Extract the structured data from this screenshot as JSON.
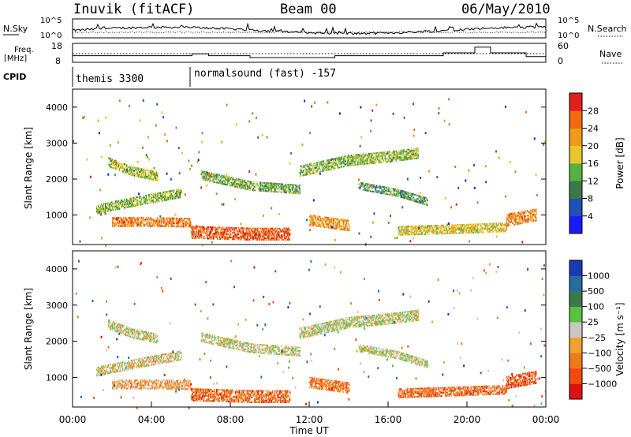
{
  "header": {
    "station": "Inuvik (fitACF)",
    "beam": "Beam 00",
    "date": "06/May/2010"
  },
  "chart_data": [
    {
      "type": "line",
      "panel": "noise",
      "left_label": "N.Sky",
      "right_label": "N.Search",
      "left_ticks": [
        "10^5",
        "10^0"
      ],
      "right_ticks": [
        "10^5",
        "10^0"
      ],
      "scale": "log",
      "ylim": [
        1,
        100000
      ]
    },
    {
      "type": "line",
      "panel": "frequency",
      "left_label_1": "Freq.",
      "left_label_2": "[MHz]",
      "right_label": "Nave",
      "left_ticks": [
        "18",
        "8"
      ],
      "right_ticks": [
        "60",
        "0"
      ],
      "series": [
        {
          "name": "Freq.",
          "x": [
            0,
            6.05,
            6.05,
            6.9,
            6.9,
            9.0,
            9.0,
            13.3,
            13.3,
            18.8,
            18.8,
            20.4,
            20.4,
            21.2,
            21.2,
            23.0,
            23.0,
            24.0
          ],
          "y": [
            11.5,
            11.5,
            12.5,
            12.5,
            11.5,
            11.5,
            10.5,
            10.5,
            11.5,
            11.5,
            13.0,
            13.0,
            16.0,
            16.0,
            13.0,
            13.0,
            11.0,
            11.0
          ]
        }
      ]
    },
    {
      "type": "table",
      "panel": "cpid",
      "label": "CPID",
      "segments": [
        {
          "start": 0,
          "text": "themis 3300"
        },
        {
          "start": 6.05,
          "text": "normalsound (fast) -157"
        }
      ]
    },
    {
      "type": "heatmap",
      "panel": "power",
      "ylabel": "Slant Range [km]",
      "yticks": [
        1000,
        2000,
        3000,
        4000
      ],
      "ylim": [
        180,
        4500
      ],
      "xlim": [
        0,
        24
      ],
      "colorbar_label": "Power [dB]",
      "colorbar_ticks": [
        4,
        8,
        12,
        16,
        20,
        24,
        28
      ],
      "colorbar_colors": [
        "#1a1aff",
        "#2050b8",
        "#3a7a4a",
        "#58b040",
        "#e6c82a",
        "#f09a1a",
        "#f06a10",
        "#e02020"
      ],
      "bands": [
        {
          "x": [
            1.2,
            3.5,
            5.5
          ],
          "y": [
            1150,
            1400,
            1600
          ],
          "w": 250,
          "level": 0.45
        },
        {
          "x": [
            1.8,
            3.0,
            4.3
          ],
          "y": [
            2450,
            2200,
            2050
          ],
          "w": 230,
          "level": 0.5
        },
        {
          "x": [
            2.0,
            4.5,
            6.0
          ],
          "y": [
            800,
            800,
            780
          ],
          "w": 260,
          "level": 0.8
        },
        {
          "x": [
            6.0,
            9.0,
            11.0
          ],
          "y": [
            500,
            450,
            450
          ],
          "w": 320,
          "level": 0.9
        },
        {
          "x": [
            6.5,
            9.0,
            11.5
          ],
          "y": [
            2100,
            1800,
            1700
          ],
          "w": 250,
          "level": 0.4
        },
        {
          "x": [
            11.5,
            14.0,
            16.0,
            17.5
          ],
          "y": [
            2200,
            2500,
            2600,
            2700
          ],
          "w": 280,
          "level": 0.45
        },
        {
          "x": [
            14.5,
            16.5,
            18.0
          ],
          "y": [
            1800,
            1600,
            1350
          ],
          "w": 200,
          "level": 0.35
        },
        {
          "x": [
            12.0,
            14.0
          ],
          "y": [
            850,
            700
          ],
          "w": 300,
          "level": 0.75
        },
        {
          "x": [
            16.5,
            19.5,
            22.0
          ],
          "y": [
            550,
            600,
            650
          ],
          "w": 250,
          "level": 0.6
        },
        {
          "x": [
            22.0,
            23.5
          ],
          "y": [
            850,
            1000
          ],
          "w": 350,
          "level": 0.8
        }
      ]
    },
    {
      "type": "heatmap",
      "panel": "velocity",
      "ylabel": "Slant Range [km]",
      "yticks": [
        1000,
        2000,
        3000,
        4000
      ],
      "ylim": [
        180,
        4500
      ],
      "xlabel": "Time UT",
      "xticks": [
        "00:00",
        "04:00",
        "08:00",
        "12:00",
        "16:00",
        "20:00",
        "00:00"
      ],
      "xlim": [
        0,
        24
      ],
      "colorbar_label": "Velocity [m s⁻¹]",
      "colorbar_ticks": [
        "1000",
        "500",
        "100",
        "25",
        "−25",
        "−100",
        "−500",
        "−1000"
      ],
      "colorbar_colors": [
        "#e01010",
        "#f04a10",
        "#f07a18",
        "#f0a030",
        "#c8c8c8",
        "#5ac040",
        "#3a7a4a",
        "#2a6aa0",
        "#1a3ab0"
      ],
      "bands": [
        {
          "x": [
            1.2,
            3.5,
            5.5
          ],
          "y": [
            1150,
            1400,
            1600
          ],
          "w": 250,
          "level": 0.45
        },
        {
          "x": [
            1.8,
            3.0,
            4.3
          ],
          "y": [
            2450,
            2200,
            2050
          ],
          "w": 230,
          "level": 0.5
        },
        {
          "x": [
            2.0,
            4.5,
            6.0
          ],
          "y": [
            800,
            800,
            780
          ],
          "w": 260,
          "level": 0.35
        },
        {
          "x": [
            6.0,
            9.0,
            11.0
          ],
          "y": [
            500,
            450,
            450
          ],
          "w": 320,
          "level": 0.2
        },
        {
          "x": [
            6.5,
            9.0,
            11.5
          ],
          "y": [
            2100,
            1800,
            1700
          ],
          "w": 250,
          "level": 0.5
        },
        {
          "x": [
            11.5,
            14.0,
            16.0,
            17.5
          ],
          "y": [
            2200,
            2500,
            2600,
            2700
          ],
          "w": 280,
          "level": 0.5
        },
        {
          "x": [
            14.5,
            16.5,
            18.0
          ],
          "y": [
            1800,
            1600,
            1350
          ],
          "w": 200,
          "level": 0.5
        },
        {
          "x": [
            12.0,
            14.0
          ],
          "y": [
            850,
            700
          ],
          "w": 300,
          "level": 0.25
        },
        {
          "x": [
            16.5,
            19.5,
            22.0
          ],
          "y": [
            550,
            600,
            650
          ],
          "w": 250,
          "level": 0.2
        },
        {
          "x": [
            22.0,
            23.5
          ],
          "y": [
            850,
            1000
          ],
          "w": 350,
          "level": 0.15
        }
      ]
    }
  ]
}
